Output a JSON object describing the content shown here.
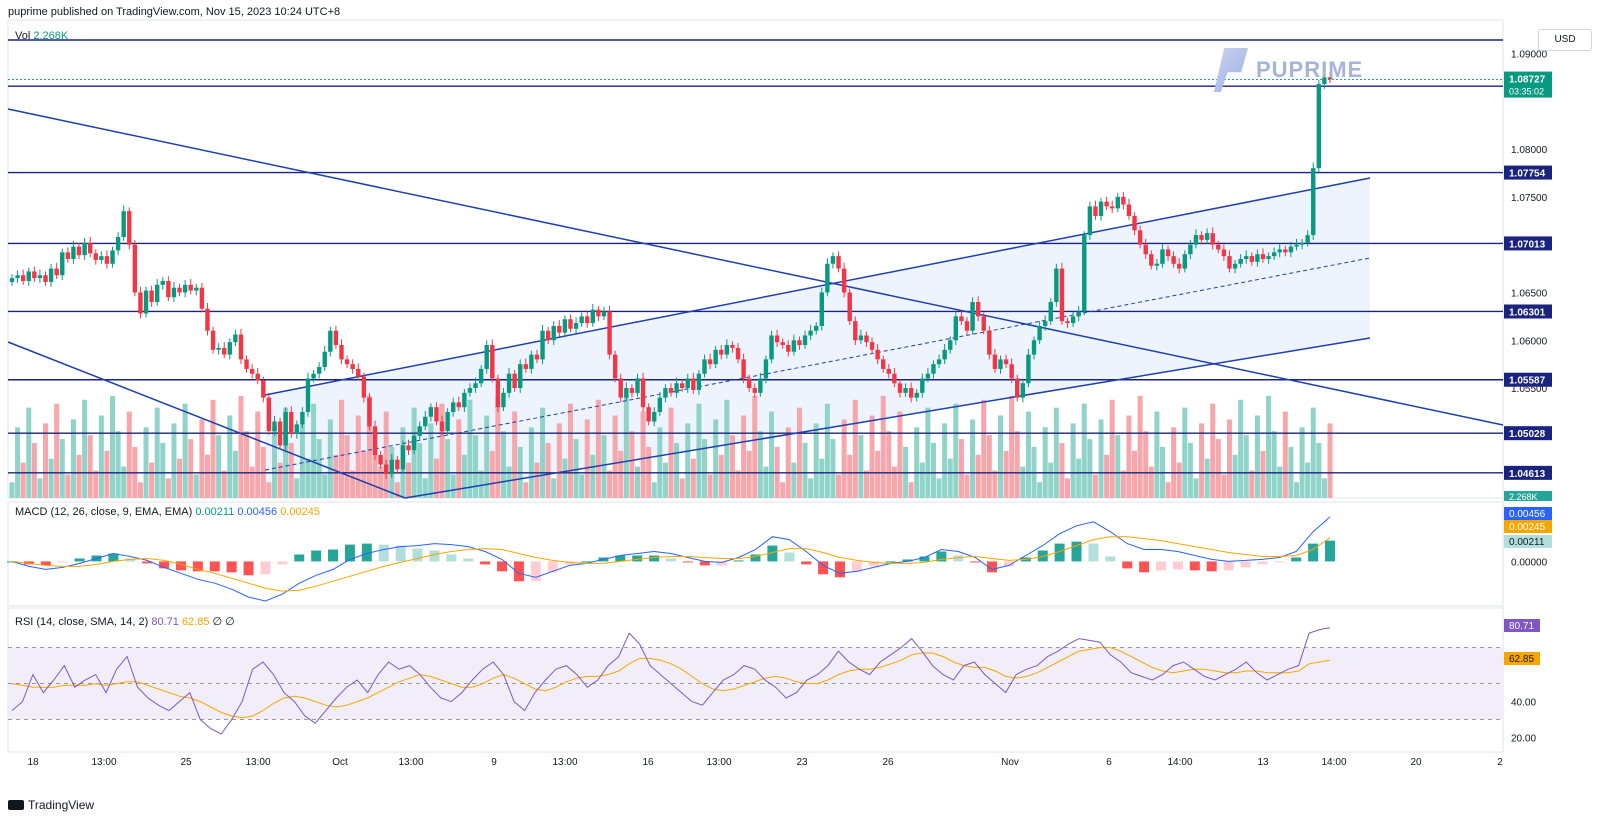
{
  "header": {
    "publisher": "puprime published on TradingView.com, Nov 15, 2023 10:24 UTC+8"
  },
  "footer": {
    "brand": "TradingView"
  },
  "watermark": {
    "text": "PUPRIME"
  },
  "currency_button": "USD",
  "volume_label": {
    "name": "Vol",
    "value": "2.268K"
  },
  "macd_label": {
    "name": "MACD (12, 26, close, 9, EMA, EMA)",
    "hist": "0.00211",
    "macd": "0.00456",
    "signal": "0.00245"
  },
  "rsi_label": {
    "name": "RSI (14, close, SMA, 14, 2)",
    "rsi": "80.71",
    "sma": "62.85",
    "extra": "∅ ∅"
  },
  "colors": {
    "up": "#089981",
    "down": "#f23645",
    "level": "#1a237e",
    "trend": "#1e3fb0",
    "macd": "#2962ff",
    "signal": "#f7a600",
    "rsi": "#7e57c2"
  },
  "chart_data": [
    {
      "type": "candlestick",
      "pair": "EURUSD",
      "ylim": [
        1.0435,
        1.0935
      ],
      "y_ticks": [
        "1.09000",
        "1.08000",
        "1.07500",
        "1.06500",
        "1.06000",
        "1.05500"
      ],
      "x_ticks": [
        "18",
        "13:00",
        "25",
        "13:00",
        "Oct",
        "13:00",
        "9",
        "13:00",
        "16",
        "13:00",
        "23",
        "26",
        "Nov",
        "6",
        "14:00",
        "13",
        "14:00",
        "20",
        "2"
      ],
      "last_price": "1.08727",
      "countdown": "03:35:02",
      "horizontal_levels": [
        "1.08658",
        "1.07754",
        "1.07013",
        "1.06301",
        "1.05587",
        "1.05028",
        "1.04613"
      ],
      "series": [
        {
          "name": "close",
          "values": [
            1.0665,
            1.0668,
            1.0662,
            1.0672,
            1.0665,
            1.0668,
            1.0661,
            1.0675,
            1.0668,
            1.0692,
            1.0685,
            1.0698,
            1.0689,
            1.0702,
            1.0691,
            1.0684,
            1.0688,
            1.068,
            1.0694,
            1.0708,
            1.0735,
            1.07,
            1.065,
            1.0628,
            1.0652,
            1.064,
            1.0658,
            1.0662,
            1.0645,
            1.0655,
            1.065,
            1.0658,
            1.0652,
            1.0655,
            1.0633,
            1.061,
            1.059,
            1.0592,
            1.0585,
            1.0598,
            1.0606,
            1.058,
            1.057,
            1.0565,
            1.0558,
            1.054,
            1.0505,
            1.0515,
            1.049,
            1.0525,
            1.0502,
            1.0512,
            1.0525,
            1.056,
            1.0565,
            1.0572,
            1.0588,
            1.061,
            1.0595,
            1.058,
            1.0575,
            1.057,
            1.0562,
            1.054,
            1.051,
            1.048,
            1.047,
            1.046,
            1.0475,
            1.0465,
            1.049,
            1.0485,
            1.05,
            1.051,
            1.052,
            1.053,
            1.0515,
            1.0505,
            1.0525,
            1.0535,
            1.053,
            1.0545,
            1.055,
            1.0555,
            1.057,
            1.0595,
            1.056,
            1.053,
            1.0545,
            1.0565,
            1.055,
            1.0575,
            1.057,
            1.0585,
            1.058,
            1.061,
            1.06,
            1.0615,
            1.0608,
            1.0622,
            1.0612,
            1.0618,
            1.0625,
            1.0618,
            1.0632,
            1.0625,
            1.063,
            1.0585,
            1.056,
            1.054,
            1.055,
            1.0545,
            1.056,
            1.053,
            1.0515,
            1.0525,
            1.054,
            1.055,
            1.0545,
            1.0555,
            1.055,
            1.056,
            1.0548,
            1.0565,
            1.058,
            1.0575,
            1.059,
            1.0585,
            1.0595,
            1.0592,
            1.058,
            1.056,
            1.055,
            1.0545,
            1.056,
            1.058,
            1.0605,
            1.0598,
            1.0595,
            1.0588,
            1.06,
            1.0595,
            1.0605,
            1.061,
            1.0615,
            1.065,
            1.068,
            1.0688,
            1.0675,
            1.065,
            1.062,
            1.06,
            1.0605,
            1.0598,
            1.059,
            1.058,
            1.057,
            1.0565,
            1.0555,
            1.0545,
            1.055,
            1.054,
            1.0545,
            1.056,
            1.0565,
            1.0575,
            1.058,
            1.059,
            1.06,
            1.0625,
            1.062,
            1.061,
            1.064,
            1.0625,
            1.061,
            1.0585,
            1.057,
            1.058,
            1.0575,
            1.056,
            1.054,
            1.0555,
            1.0585,
            1.06,
            1.0615,
            1.062,
            1.064,
            1.0675,
            1.062,
            1.0618,
            1.0625,
            1.063,
            1.071,
            1.074,
            1.073,
            1.0745,
            1.074,
            1.0738,
            1.075,
            1.0742,
            1.073,
            1.0715,
            1.07,
            1.069,
            1.0678,
            1.068,
            1.0695,
            1.0688,
            1.068,
            1.0675,
            1.069,
            1.07,
            1.071,
            1.0705,
            1.0712,
            1.07,
            1.0695,
            1.0688,
            1.0675,
            1.068,
            1.0685,
            1.0688,
            1.0682,
            1.069,
            1.0685,
            1.0688,
            1.0692,
            1.0695,
            1.0692,
            1.0698,
            1.07,
            1.0702,
            1.071,
            1.078,
            1.0868,
            1.0875,
            1.0873
          ]
        }
      ],
      "volume": {
        "ylim": [
          0,
          2.8
        ]
      }
    },
    {
      "type": "line",
      "name": "MACD",
      "ylim": [
        -0.0045,
        0.006
      ],
      "y_ticks": [
        "0.00000"
      ],
      "series": [
        {
          "name": "MACD",
          "values": [
            0.0,
            -0.0005,
            -0.0008,
            -0.0006,
            -0.0002,
            0.0003,
            0.0008,
            0.0005,
            0.0001,
            -0.0006,
            -0.0012,
            -0.0018,
            -0.0022,
            -0.0028,
            -0.0036,
            -0.004,
            -0.0033,
            -0.0022,
            -0.0014,
            -0.0008,
            0.0002,
            0.0008,
            0.0012,
            0.0015,
            0.0016,
            0.0018,
            0.0017,
            0.0015,
            0.001,
            0.0002,
            -0.0012,
            -0.0016,
            -0.001,
            -0.0004,
            -0.0002,
            0.0002,
            0.0006,
            0.0008,
            0.001,
            0.0008,
            0.0004,
            0.0,
            -0.0001,
            0.0004,
            0.0012,
            0.0025,
            0.0022,
            0.001,
            -0.0004,
            -0.0012,
            -0.001,
            -0.0006,
            -0.0002,
            0.0,
            0.0004,
            0.0012,
            0.001,
            0.0004,
            -0.0008,
            -0.0004,
            0.0006,
            0.0016,
            0.0028,
            0.0036,
            0.004,
            0.003,
            0.0018,
            0.0012,
            0.0012,
            0.001,
            0.0006,
            0.0002,
            0.0,
            0.0001,
            0.0002,
            0.0004,
            0.001,
            0.003,
            0.0045
          ]
        },
        {
          "name": "Signal",
          "values": [
            0.0,
            -0.0002,
            -0.0004,
            -0.0005,
            -0.0005,
            -0.0003,
            0.0,
            0.0002,
            0.0003,
            0.0001,
            -0.0003,
            -0.0008,
            -0.0012,
            -0.0017,
            -0.0022,
            -0.0027,
            -0.003,
            -0.0029,
            -0.0025,
            -0.002,
            -0.0015,
            -0.001,
            -0.0005,
            -0.0001,
            0.0003,
            0.0007,
            0.001,
            0.0012,
            0.0013,
            0.0012,
            0.0008,
            0.0004,
            0.0001,
            -0.0001,
            -0.0002,
            -0.0002,
            0.0,
            0.0002,
            0.0004,
            0.0005,
            0.0005,
            0.0004,
            0.0003,
            0.0003,
            0.0005,
            0.0009,
            0.0013,
            0.0013,
            0.0009,
            0.0004,
            0.0001,
            -0.0001,
            -0.0002,
            -0.0002,
            -0.0001,
            0.0002,
            0.0004,
            0.0005,
            0.0003,
            0.0001,
            0.0002,
            0.0005,
            0.001,
            0.0016,
            0.0022,
            0.0025,
            0.0025,
            0.0023,
            0.0021,
            0.0018,
            0.0015,
            0.0012,
            0.0009,
            0.0007,
            0.0005,
            0.0005,
            0.0006,
            0.0012,
            0.0024
          ]
        }
      ]
    },
    {
      "type": "line",
      "name": "RSI",
      "ylim": [
        12,
        92
      ],
      "y_ticks": [
        "40.00",
        "20.00"
      ],
      "bands": [
        30,
        50,
        70
      ],
      "series": [
        {
          "name": "RSI",
          "values": [
            35,
            40,
            55,
            45,
            52,
            60,
            48,
            52,
            55,
            45,
            58,
            65,
            48,
            42,
            38,
            35,
            40,
            45,
            30,
            25,
            22,
            30,
            40,
            58,
            62,
            55,
            45,
            40,
            32,
            28,
            35,
            42,
            48,
            52,
            45,
            55,
            62,
            58,
            60,
            55,
            48,
            42,
            40,
            45,
            52,
            58,
            62,
            55,
            40,
            35,
            45,
            52,
            58,
            60,
            55,
            48,
            52,
            60,
            65,
            78,
            72,
            60,
            55,
            50,
            45,
            40,
            38,
            45,
            52,
            55,
            60,
            58,
            52,
            48,
            42,
            45,
            52,
            55,
            60,
            68,
            62,
            58,
            55,
            62,
            66,
            70,
            75,
            68,
            60,
            55,
            52,
            60,
            62,
            55,
            50,
            45,
            55,
            58,
            60,
            65,
            68,
            72,
            75,
            74,
            73,
            66,
            62,
            56,
            54,
            52,
            55,
            60,
            62,
            58,
            54,
            52,
            55,
            58,
            62,
            56,
            52,
            55,
            58,
            60,
            78,
            80,
            81
          ]
        },
        {
          "name": "RSI-based MA",
          "values": [
            50,
            49,
            48,
            48,
            48,
            49,
            49,
            49,
            50,
            49,
            50,
            51,
            51,
            49,
            47,
            45,
            43,
            42,
            40,
            37,
            34,
            32,
            31,
            32,
            35,
            39,
            42,
            43,
            42,
            40,
            38,
            37,
            38,
            40,
            42,
            45,
            48,
            51,
            53,
            55,
            54,
            52,
            50,
            48,
            48,
            50,
            53,
            55,
            53,
            50,
            47,
            46,
            48,
            51,
            53,
            54,
            54,
            55,
            57,
            61,
            64,
            64,
            63,
            61,
            58,
            54,
            50,
            47,
            46,
            47,
            49,
            51,
            53,
            54,
            53,
            51,
            50,
            50,
            52,
            55,
            57,
            58,
            58,
            59,
            61,
            63,
            66,
            67,
            67,
            65,
            62,
            60,
            59,
            59,
            57,
            54,
            53,
            54,
            56,
            59,
            62,
            65,
            68,
            69,
            70,
            70,
            68,
            65,
            62,
            59,
            57,
            56,
            57,
            58,
            58,
            57,
            56,
            56,
            57,
            57,
            56,
            56,
            56,
            57,
            61,
            62,
            63
          ]
        }
      ]
    }
  ]
}
